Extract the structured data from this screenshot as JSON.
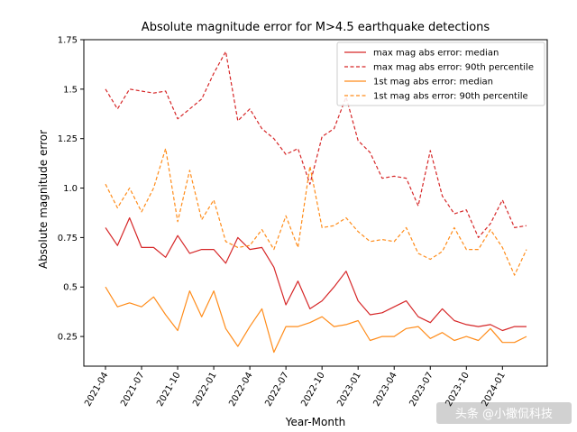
{
  "chart_data": {
    "type": "line",
    "title": "Absolute magnitude error for M>4.5 earthquake detections",
    "xlabel": "Year-Month",
    "ylabel": "Absolute magnitude error",
    "ylim": [
      0.1,
      1.75
    ],
    "yticks": [
      0.25,
      0.5,
      0.75,
      1.0,
      1.25,
      1.5,
      1.75
    ],
    "ytick_labels": [
      "0.25",
      "0.5",
      "0.75",
      "1.0",
      "1.25",
      "1.5",
      "1.75"
    ],
    "x": [
      "2021-04",
      "2021-05",
      "2021-06",
      "2021-07",
      "2021-08",
      "2021-09",
      "2021-10",
      "2021-11",
      "2021-12",
      "2022-01",
      "2022-02",
      "2022-03",
      "2022-04",
      "2022-05",
      "2022-06",
      "2022-07",
      "2022-08",
      "2022-09",
      "2022-10",
      "2022-11",
      "2022-12",
      "2023-01",
      "2023-02",
      "2023-03",
      "2023-04",
      "2023-05",
      "2023-06",
      "2023-07",
      "2023-08",
      "2023-09",
      "2023-10",
      "2023-11",
      "2023-12",
      "2024-01",
      "2024-02",
      "2024-03"
    ],
    "xtick_labels": [
      "2021-04",
      "2021-07",
      "2021-10",
      "2022-01",
      "2022-04",
      "2022-07",
      "2022-10",
      "2023-01",
      "2023-04",
      "2023-07",
      "2023-10",
      "2024-01"
    ],
    "legend_position": "top-right",
    "grid": false,
    "series": [
      {
        "name": "max mag abs error: median",
        "color": "#d62728",
        "style": "solid",
        "values": [
          0.8,
          0.71,
          0.85,
          0.7,
          0.7,
          0.65,
          0.76,
          0.67,
          0.69,
          0.69,
          0.62,
          0.75,
          0.69,
          0.7,
          0.6,
          0.41,
          0.53,
          0.39,
          0.43,
          0.5,
          0.58,
          0.43,
          0.36,
          0.37,
          0.4,
          0.43,
          0.35,
          0.32,
          0.39,
          0.33,
          0.31,
          0.3,
          0.31,
          0.28,
          0.3,
          0.3
        ]
      },
      {
        "name": "max mag abs error: 90th percentile",
        "color": "#d62728",
        "style": "dashed",
        "values": [
          1.5,
          1.4,
          1.5,
          1.49,
          1.48,
          1.49,
          1.35,
          1.4,
          1.45,
          1.58,
          1.69,
          1.34,
          1.4,
          1.3,
          1.25,
          1.17,
          1.2,
          1.02,
          1.26,
          1.3,
          1.46,
          1.24,
          1.18,
          1.05,
          1.06,
          1.05,
          0.91,
          1.19,
          0.96,
          0.87,
          0.89,
          0.75,
          0.82,
          0.94,
          0.8,
          0.81
        ]
      },
      {
        "name": "1st mag abs error: median",
        "color": "#ff8c1a",
        "style": "solid",
        "values": [
          0.5,
          0.4,
          0.42,
          0.4,
          0.45,
          0.36,
          0.28,
          0.48,
          0.35,
          0.48,
          0.29,
          0.2,
          0.3,
          0.39,
          0.17,
          0.3,
          0.3,
          0.32,
          0.35,
          0.3,
          0.31,
          0.33,
          0.23,
          0.25,
          0.25,
          0.29,
          0.3,
          0.24,
          0.27,
          0.23,
          0.25,
          0.23,
          0.29,
          0.22,
          0.22,
          0.25
        ]
      },
      {
        "name": "1st mag abs error: 90th percentile",
        "color": "#ff8c1a",
        "style": "dashed",
        "values": [
          1.02,
          0.9,
          1.0,
          0.88,
          1.0,
          1.2,
          0.83,
          1.09,
          0.84,
          0.94,
          0.73,
          0.7,
          0.71,
          0.79,
          0.69,
          0.86,
          0.7,
          1.11,
          0.8,
          0.81,
          0.85,
          0.78,
          0.73,
          0.74,
          0.73,
          0.8,
          0.67,
          0.64,
          0.68,
          0.8,
          0.69,
          0.69,
          0.79,
          0.7,
          0.56,
          0.69
        ]
      }
    ]
  },
  "watermark": "头条 @小撒侃科技"
}
